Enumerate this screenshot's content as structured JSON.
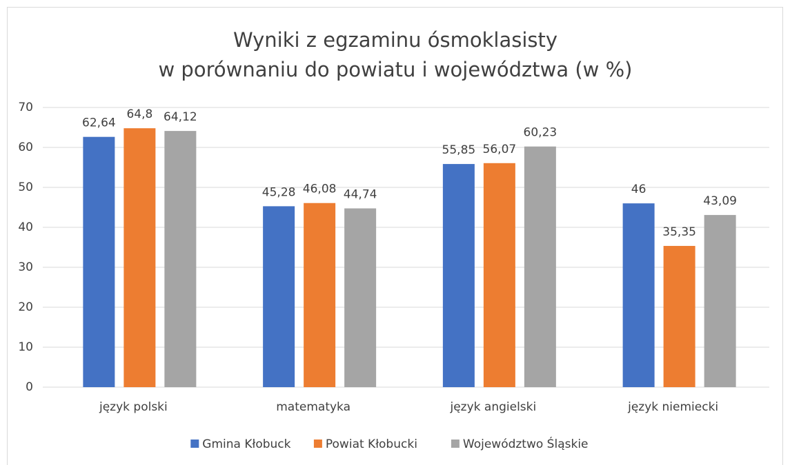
{
  "chart_data": {
    "type": "bar",
    "title": [
      "Wyniki z egzaminu ósmoklasisty",
      "w porównaniu do powiatu i województwa (w %)"
    ],
    "categories": [
      "język polski",
      "matematyka",
      "język angielski",
      "język niemiecki"
    ],
    "series": [
      {
        "name": "Gmina Kłobuck",
        "color": "#4472c4",
        "values": [
          62.64,
          45.28,
          55.85,
          46
        ],
        "value_labels": [
          "62,64",
          "45,28",
          "55,85",
          "46"
        ]
      },
      {
        "name": "Powiat Kłobucki",
        "color": "#ed7d31",
        "values": [
          64.8,
          46.08,
          56.07,
          35.35
        ],
        "value_labels": [
          "64,8",
          "46,08",
          "56,07",
          "35,35"
        ]
      },
      {
        "name": "Województwo Śląskie",
        "color": "#a5a5a5",
        "values": [
          64.12,
          44.74,
          60.23,
          43.09
        ],
        "value_labels": [
          "64,12",
          "44,74",
          "60,23",
          "43,09"
        ]
      }
    ],
    "ylim": [
      0,
      70
    ],
    "yticks": [
      0,
      10,
      20,
      30,
      40,
      50,
      60,
      70
    ],
    "grid": true,
    "legend": "bottom"
  }
}
